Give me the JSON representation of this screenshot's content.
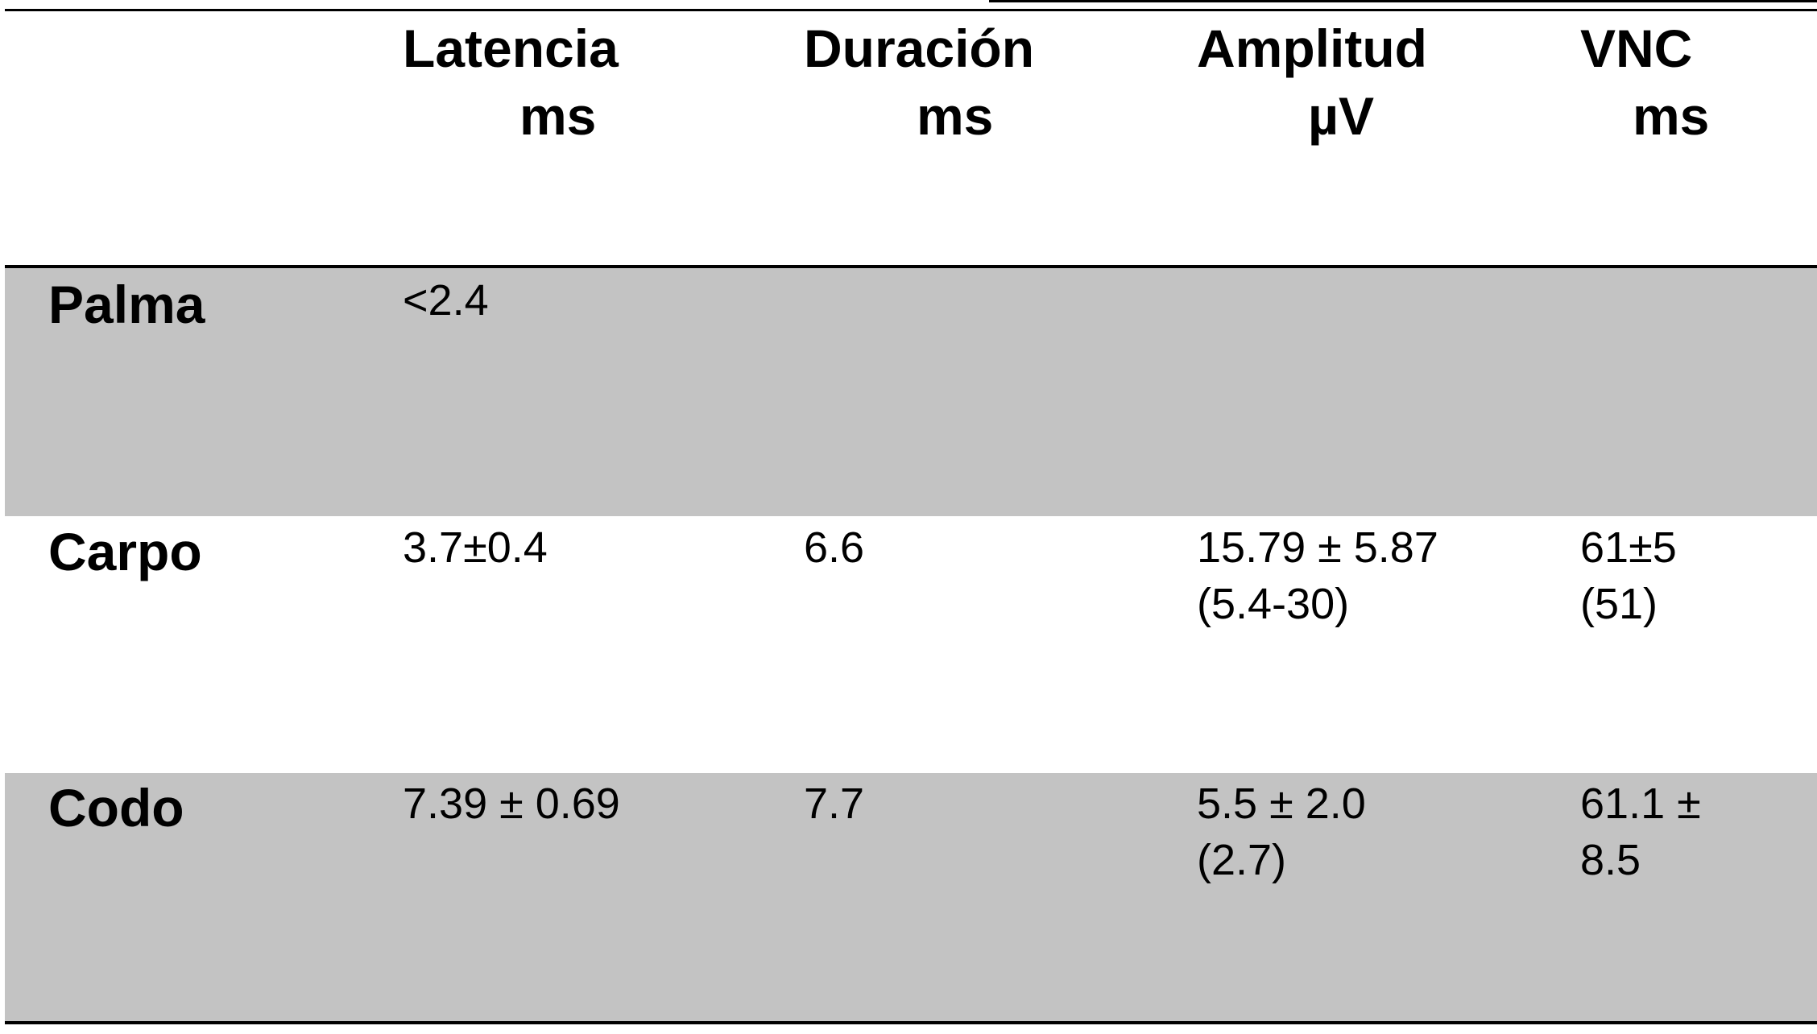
{
  "table": {
    "header": {
      "latencia": {
        "label": "Latencia",
        "unit": "ms"
      },
      "duracion": {
        "label": "Duración",
        "unit": "ms"
      },
      "amplitud": {
        "label": "Amplitud",
        "unit": "µV"
      },
      "vnc": {
        "label": "VNC",
        "unit": "ms"
      }
    },
    "rows": {
      "palma": {
        "label": "Palma",
        "latencia": "<2.4",
        "duracion": "",
        "amplitud": "",
        "vnc": ""
      },
      "carpo": {
        "label": "Carpo",
        "latencia": "3.7±0.4",
        "duracion": "6.6",
        "amplitud": "15.79 ± 5.87\n(5.4-30)",
        "vnc": "61±5\n(51)"
      },
      "codo": {
        "label": "Codo",
        "latencia": "7.39 ± 0.69",
        "duracion": "7.7",
        "amplitud": "5.5 ± 2.0\n(2.7)",
        "vnc": "61.1 ±\n8.5"
      }
    }
  },
  "colors": {
    "shaded_row": "#c3c3c3",
    "rules": "#000000",
    "text": "#000000"
  }
}
